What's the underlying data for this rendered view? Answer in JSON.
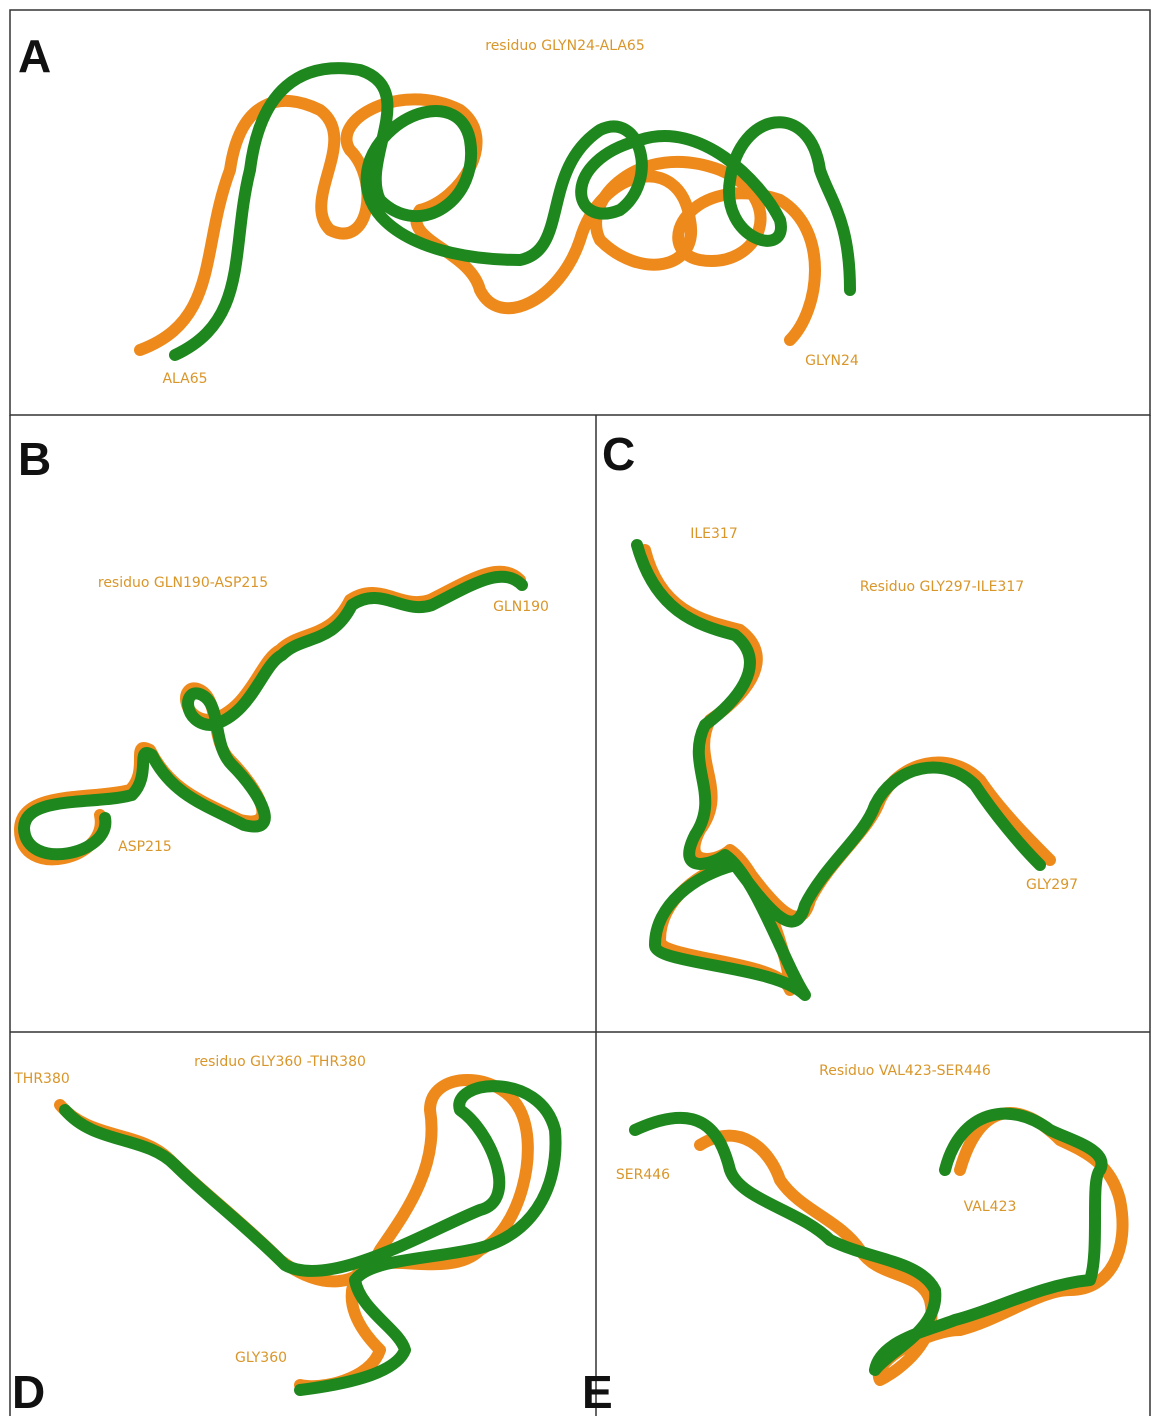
{
  "panels": [
    {
      "letter": "A",
      "title": "residuo GLYN24-ALA65",
      "labels": [
        "ALA65",
        "GLYN24"
      ]
    },
    {
      "letter": "B",
      "title": "residuo GLN190-ASP215",
      "labels": [
        "GLN190",
        "ASP215"
      ]
    },
    {
      "letter": "C",
      "title": "Residuo GLY297-ILE317",
      "labels": [
        "ILE317",
        "GLY297"
      ]
    },
    {
      "letter": "D",
      "title": "residuo GLY360 -THR380",
      "labels": [
        "THR380",
        "GLY360"
      ]
    },
    {
      "letter": "E",
      "title": "Residuo VAL423-SER446",
      "labels": [
        "SER446",
        "VAL423"
      ]
    }
  ]
}
